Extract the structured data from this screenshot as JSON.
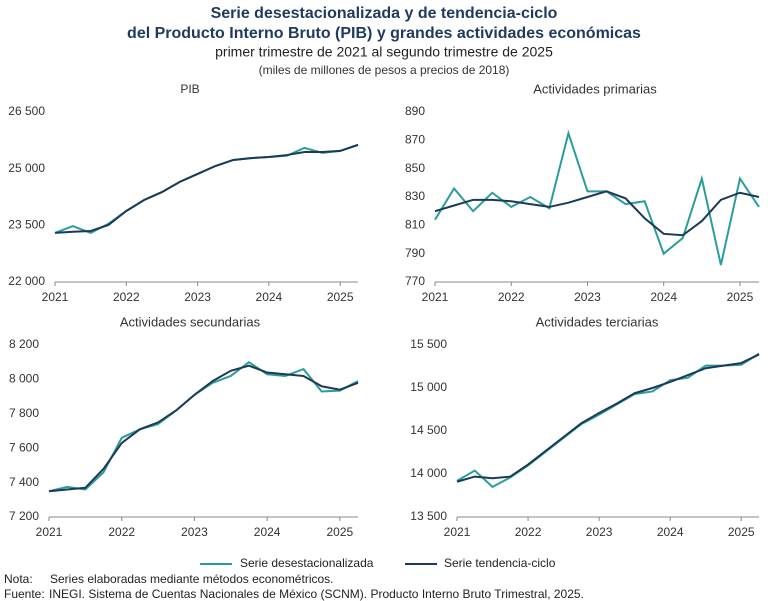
{
  "header": {
    "title": [
      "Serie desestacionalizada y de tendencia-ciclo",
      "del Producto Interno Bruto (PIB) y grandes actividades económicas"
    ],
    "subtitle": "primer trimestre de 2021 al segundo trimestre de 2025",
    "units": "(miles de millones de pesos a precios de 2018)"
  },
  "chart_data": [
    {
      "type": "line",
      "title": "PIB",
      "x": [
        2021,
        2021.25,
        2021.5,
        2021.75,
        2022,
        2022.25,
        2022.5,
        2022.75,
        2023,
        2023.25,
        2023.5,
        2023.75,
        2024,
        2024.25,
        2024.5,
        2024.75,
        2025,
        2025.25
      ],
      "xlim": [
        2021,
        2025.25
      ],
      "xticks": [
        2021,
        2022,
        2023,
        2024,
        2025
      ],
      "ylim": [
        22000,
        26500
      ],
      "yticks": [
        {
          "value": 22000,
          "label": "22 000"
        },
        {
          "value": 23500,
          "label": "23 500"
        },
        {
          "value": 25000,
          "label": "25 000"
        },
        {
          "value": 26500,
          "label": "26 500"
        }
      ],
      "series": [
        {
          "name": "Serie desestacionalizada",
          "color": "#2a9d9b",
          "values": [
            23300,
            23480,
            23300,
            23540,
            23880,
            24170,
            24380,
            24650,
            24860,
            25070,
            25230,
            25280,
            25310,
            25340,
            25550,
            25420,
            25470,
            25630
          ]
        },
        {
          "name": "Serie tendencia-ciclo",
          "color": "#1b3a57",
          "values": [
            23300,
            23330,
            23350,
            23510,
            23880,
            24170,
            24380,
            24650,
            24860,
            25070,
            25230,
            25280,
            25310,
            25360,
            25440,
            25440,
            25470,
            25630
          ]
        }
      ]
    },
    {
      "type": "line",
      "title": "Actividades primarias",
      "x": [
        2021,
        2021.25,
        2021.5,
        2021.75,
        2022,
        2022.25,
        2022.5,
        2022.75,
        2023,
        2023.25,
        2023.5,
        2023.75,
        2024,
        2024.25,
        2024.5,
        2024.75,
        2025,
        2025.25
      ],
      "xlim": [
        2021,
        2025.25
      ],
      "xticks": [
        2021,
        2022,
        2023,
        2024,
        2025
      ],
      "ylim": [
        770,
        890
      ],
      "yticks": [
        770,
        790,
        810,
        830,
        850,
        870,
        890
      ],
      "series": [
        {
          "name": "Serie desestacionalizada",
          "color": "#2a9d9b",
          "values": [
            814,
            836,
            820,
            833,
            823,
            830,
            822,
            875,
            834,
            834,
            825,
            827,
            790,
            801,
            843,
            782,
            843,
            823
          ]
        },
        {
          "name": "Serie tendencia-ciclo",
          "color": "#1b3a57",
          "values": [
            820,
            824,
            828,
            828,
            827,
            825,
            823,
            826,
            830,
            834,
            829,
            815,
            804,
            803,
            813,
            828,
            833,
            830
          ]
        }
      ]
    },
    {
      "type": "line",
      "title": "Actividades secundarias",
      "x": [
        2021,
        2021.25,
        2021.5,
        2021.75,
        2022,
        2022.25,
        2022.5,
        2022.75,
        2023,
        2023.25,
        2023.5,
        2023.75,
        2024,
        2024.25,
        2024.5,
        2024.75,
        2025,
        2025.25
      ],
      "xlim": [
        2021,
        2025.25
      ],
      "xticks": [
        2021,
        2022,
        2023,
        2024,
        2025
      ],
      "ylim": [
        7200,
        8200
      ],
      "yticks": [
        {
          "value": 7200,
          "label": "7 200"
        },
        {
          "value": 7400,
          "label": "7 400"
        },
        {
          "value": 7600,
          "label": "7 600"
        },
        {
          "value": 7800,
          "label": "7 800"
        },
        {
          "value": 8000,
          "label": "8 000"
        },
        {
          "value": 8200,
          "label": "8 200"
        }
      ],
      "series": [
        {
          "name": "Serie desestacionalizada",
          "color": "#2a9d9b",
          "values": [
            7350,
            7375,
            7360,
            7460,
            7660,
            7710,
            7740,
            7820,
            7910,
            7980,
            8020,
            8100,
            8030,
            8020,
            8060,
            7930,
            7935,
            7990
          ]
        },
        {
          "name": "Serie tendencia-ciclo",
          "color": "#1b3a57",
          "values": [
            7350,
            7360,
            7370,
            7480,
            7630,
            7710,
            7750,
            7820,
            7910,
            7990,
            8050,
            8080,
            8040,
            8030,
            8020,
            7960,
            7940,
            7980
          ]
        }
      ]
    },
    {
      "type": "line",
      "title": "Actividades terciarias",
      "x": [
        2021,
        2021.25,
        2021.5,
        2021.75,
        2022,
        2022.25,
        2022.5,
        2022.75,
        2023,
        2023.25,
        2023.5,
        2023.75,
        2024,
        2024.25,
        2024.5,
        2024.75,
        2025,
        2025.25
      ],
      "xlim": [
        2021,
        2025.25
      ],
      "xticks": [
        2021,
        2022,
        2023,
        2024,
        2025
      ],
      "ylim": [
        13500,
        15500
      ],
      "yticks": [
        {
          "value": 13500,
          "label": "13 500"
        },
        {
          "value": 14000,
          "label": "14 000"
        },
        {
          "value": 14500,
          "label": "14 500"
        },
        {
          "value": 15000,
          "label": "15 000"
        },
        {
          "value": 15500,
          "label": "15 500"
        }
      ],
      "series": [
        {
          "name": "Serie desestacionalizada",
          "color": "#2a9d9b",
          "values": [
            13920,
            14040,
            13850,
            13960,
            14100,
            14260,
            14420,
            14580,
            14690,
            14810,
            14930,
            14960,
            15090,
            15120,
            15260,
            15260,
            15270,
            15400
          ]
        },
        {
          "name": "Serie tendencia-ciclo",
          "color": "#1b3a57",
          "values": [
            13910,
            13970,
            13950,
            13970,
            14110,
            14270,
            14430,
            14590,
            14710,
            14820,
            14940,
            15000,
            15070,
            15150,
            15230,
            15260,
            15290,
            15390
          ]
        }
      ]
    }
  ],
  "footer": {
    "note_label": "Nota:",
    "note": "Series elaboradas mediante métodos econométricos.",
    "source_label": "Fuente:",
    "source": "INEGI. Sistema de Cuentas Nacionales de México (SCNM). Producto Interno Bruto Trimestral, 2025."
  }
}
